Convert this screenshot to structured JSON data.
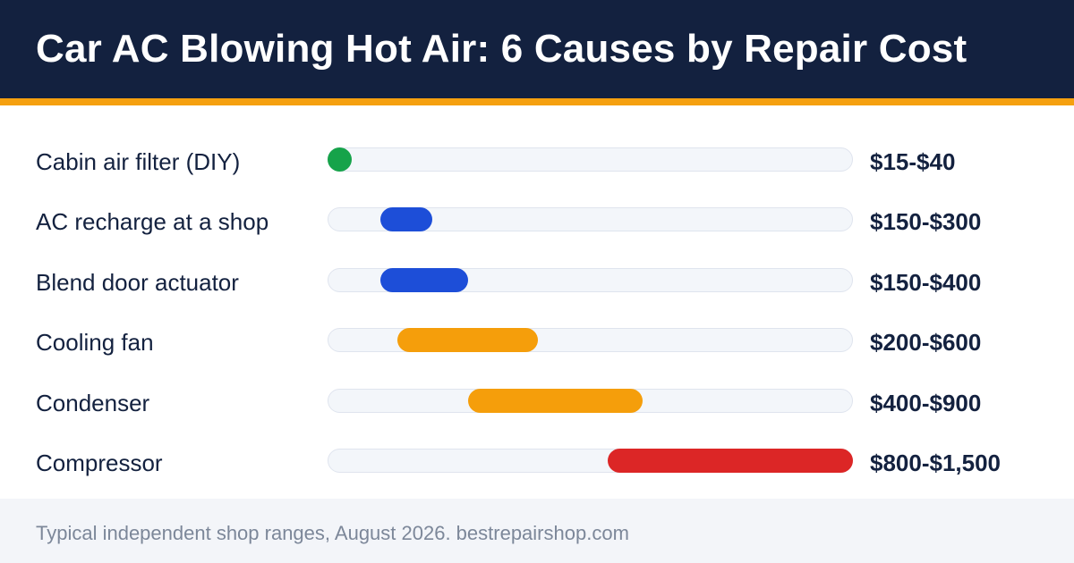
{
  "header": {
    "title": "Car AC Blowing Hot Air: 6 Causes by Repair Cost"
  },
  "colors": {
    "header_bg": "#13213f",
    "accent": "#f5a00f",
    "green": "#16a34a",
    "blue": "#1d4ed8",
    "orange": "#f59e0b",
    "red": "#dc2626"
  },
  "chart_data": {
    "type": "bar",
    "orientation": "horizontal-range",
    "xlim": [
      0,
      1500
    ],
    "grid": false,
    "categories": [
      "Cabin air filter (DIY)",
      "AC recharge at a shop",
      "Blend door actuator",
      "Cooling fan",
      "Condenser",
      "Compressor"
    ],
    "ranges": [
      {
        "min": 15,
        "max": 40,
        "label": "$15-$40",
        "color": "#16a34a"
      },
      {
        "min": 150,
        "max": 300,
        "label": "$150-$300",
        "color": "#1d4ed8"
      },
      {
        "min": 150,
        "max": 400,
        "label": "$150-$400",
        "color": "#1d4ed8"
      },
      {
        "min": 200,
        "max": 600,
        "label": "$200-$600",
        "color": "#f59e0b"
      },
      {
        "min": 400,
        "max": 900,
        "label": "$400-$900",
        "color": "#f59e0b"
      },
      {
        "min": 800,
        "max": 1500,
        "label": "$800-$1,500",
        "color": "#dc2626"
      }
    ]
  },
  "footer": {
    "note": "Typical independent shop ranges, August 2026. bestrepairshop.com"
  }
}
